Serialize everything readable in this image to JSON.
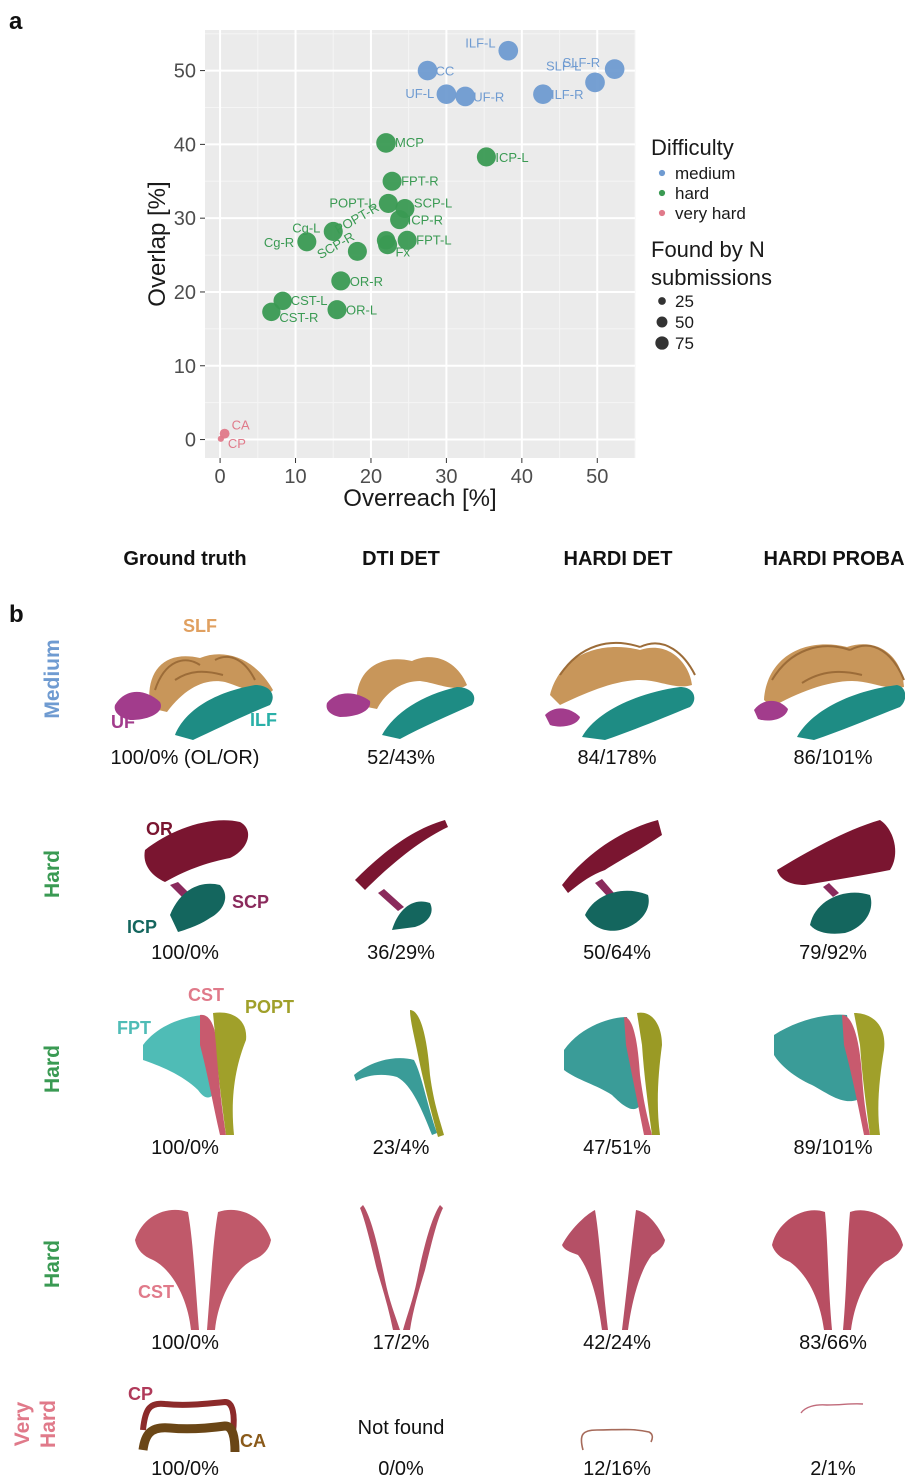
{
  "panels": {
    "a": "a",
    "b": "b"
  },
  "colors": {
    "medium": "#6f9bd1",
    "hard": "#3a9a53",
    "very_hard": "#e07a8a",
    "panel_bg": "#ebebeb",
    "slf": "#c8965a",
    "uf": "#a23c8c",
    "ilf": "#1e8c84",
    "or": "#7a1530",
    "scp": "#8a2a5c",
    "icp": "#14665e",
    "fpt": "#4fbcb6",
    "cst": "#c85a6e",
    "popt": "#a0a02a",
    "cp": "#8c2a2a",
    "ca": "#6a4616"
  },
  "chart_data": {
    "type": "scatter",
    "title": "",
    "xlabel": "Overreach [%]",
    "ylabel": "Overlap [%]",
    "xlim": [
      -2,
      55
    ],
    "ylim": [
      -2.5,
      55.5
    ],
    "xticks": [
      0,
      10,
      20,
      30,
      40,
      50
    ],
    "yticks": [
      0,
      10,
      20,
      30,
      40,
      50
    ],
    "grid": true,
    "legend": {
      "placement": "right",
      "difficulty_title": "Difficulty",
      "difficulty_items": [
        {
          "key": "medium",
          "label": "medium"
        },
        {
          "key": "hard",
          "label": "hard"
        },
        {
          "key": "very_hard",
          "label": "very hard"
        }
      ],
      "size_title_line1": "Found by N",
      "size_title_line2": "submissions",
      "size_items": [
        "25",
        "50",
        "75"
      ]
    },
    "points": [
      {
        "label": "ILF-L",
        "x": 38.2,
        "y": 52.7,
        "difficulty": "medium",
        "n": 80
      },
      {
        "label": "SLF-R",
        "x": 52.3,
        "y": 50.2,
        "difficulty": "medium",
        "n": 80
      },
      {
        "label": "CC",
        "x": 27.5,
        "y": 50.0,
        "difficulty": "medium",
        "n": 80
      },
      {
        "label": "SLF-L",
        "x": 49.7,
        "y": 48.4,
        "difficulty": "medium",
        "n": 80
      },
      {
        "label": "UF-L",
        "x": 30.0,
        "y": 46.8,
        "difficulty": "medium",
        "n": 80
      },
      {
        "label": "UF-R",
        "x": 32.5,
        "y": 46.5,
        "difficulty": "medium",
        "n": 80
      },
      {
        "label": "ILF-R",
        "x": 42.8,
        "y": 46.8,
        "difficulty": "medium",
        "n": 80
      },
      {
        "label": "MCP",
        "x": 22.0,
        "y": 40.2,
        "difficulty": "hard",
        "n": 80
      },
      {
        "label": "ICP-L",
        "x": 35.3,
        "y": 38.3,
        "difficulty": "hard",
        "n": 75
      },
      {
        "label": "FPT-R",
        "x": 22.8,
        "y": 35.0,
        "difficulty": "hard",
        "n": 75
      },
      {
        "label": "POPT-L",
        "x": 22.3,
        "y": 32.0,
        "difficulty": "hard",
        "n": 75
      },
      {
        "label": "SCP-L",
        "x": 24.5,
        "y": 31.3,
        "difficulty": "hard",
        "n": 75
      },
      {
        "label": "ICP-R",
        "x": 23.8,
        "y": 29.8,
        "difficulty": "hard",
        "n": 75
      },
      {
        "label": "Cg-L",
        "x": 15.0,
        "y": 28.2,
        "difficulty": "hard",
        "n": 75
      },
      {
        "label": "Cg-R",
        "x": 11.5,
        "y": 26.8,
        "difficulty": "hard",
        "n": 75
      },
      {
        "label": "POPT-R",
        "x": 22.0,
        "y": 27.0,
        "difficulty": "hard",
        "n": 70
      },
      {
        "label": "FPT-L",
        "x": 24.8,
        "y": 27.0,
        "difficulty": "hard",
        "n": 75
      },
      {
        "label": "Fx",
        "x": 22.2,
        "y": 26.4,
        "difficulty": "hard",
        "n": 75
      },
      {
        "label": "SCP-R",
        "x": 18.2,
        "y": 25.5,
        "difficulty": "hard",
        "n": 75
      },
      {
        "label": "OR-R",
        "x": 16.0,
        "y": 21.5,
        "difficulty": "hard",
        "n": 75
      },
      {
        "label": "CST-L",
        "x": 8.3,
        "y": 18.8,
        "difficulty": "hard",
        "n": 70
      },
      {
        "label": "CST-R",
        "x": 6.8,
        "y": 17.3,
        "difficulty": "hard",
        "n": 70
      },
      {
        "label": "OR-L",
        "x": 15.5,
        "y": 17.6,
        "difficulty": "hard",
        "n": 75
      },
      {
        "label": "CA",
        "x": 0.6,
        "y": 0.8,
        "difficulty": "very_hard",
        "n": 20
      },
      {
        "label": "CP",
        "x": 0.1,
        "y": 0.1,
        "difficulty": "very_hard",
        "n": 8
      }
    ]
  },
  "figure_b": {
    "columns": [
      "Ground truth",
      "DTI DET",
      "HARDI DET",
      "HARDI PROBA"
    ],
    "rows": [
      {
        "label": "Medium",
        "color_key": "medium",
        "scores": [
          "100/0% (OL/OR)",
          "52/43%",
          "84/178%",
          "86/101%"
        ],
        "tract_labels": [
          "SLF",
          "UF",
          "ILF"
        ]
      },
      {
        "label": "Hard",
        "color_key": "hard",
        "scores": [
          "100/0%",
          "36/29%",
          "50/64%",
          "79/92%"
        ],
        "tract_labels": [
          "OR",
          "SCP",
          "ICP"
        ]
      },
      {
        "label": "Hard",
        "color_key": "hard",
        "scores": [
          "100/0%",
          "23/4%",
          "47/51%",
          "89/101%"
        ],
        "tract_labels": [
          "FPT",
          "CST",
          "POPT"
        ]
      },
      {
        "label": "Hard",
        "color_key": "hard",
        "scores": [
          "100/0%",
          "17/2%",
          "42/24%",
          "83/66%"
        ],
        "tract_labels": [
          "CST"
        ]
      },
      {
        "label_line1": "Very",
        "label_line2": "Hard",
        "color_key": "very_hard",
        "scores": [
          "100/0%",
          "0/0%",
          "12/16%",
          "2/1%"
        ],
        "tract_labels": [
          "CP",
          "CA"
        ],
        "not_found": "Not found"
      }
    ]
  }
}
